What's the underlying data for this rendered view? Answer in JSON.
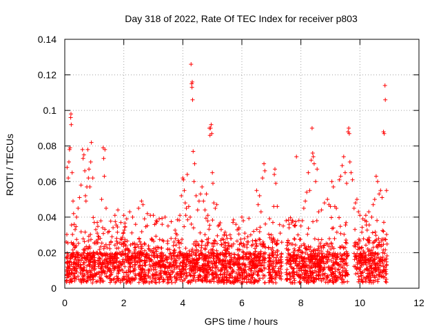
{
  "chart_data": {
    "type": "scatter",
    "title": "Day 318 of 2022, Rate Of TEC Index for receiver p803",
    "xlabel": "GPS time / hours",
    "ylabel": "ROTI / TECUs",
    "xlim": [
      0,
      12
    ],
    "ylim": [
      0,
      0.14
    ],
    "xticks": [
      0,
      2,
      4,
      6,
      8,
      10,
      12
    ],
    "xtick_labels": [
      "0",
      "2",
      "4",
      "6",
      "8",
      "10",
      "12"
    ],
    "yticks": [
      0,
      0.02,
      0.04,
      0.06,
      0.08,
      0.1,
      0.12,
      0.14
    ],
    "ytick_labels": [
      "0",
      "0.02",
      "0.04",
      "0.06",
      "0.08",
      "0.1",
      "0.12",
      "0.14"
    ],
    "grid": true,
    "marker": "plus",
    "color": "#ff0000",
    "series": [
      {
        "name": "ROTI",
        "points": [
          [
            0.05,
            0.026
          ],
          [
            0.08,
            0.068
          ],
          [
            0.1,
            0.014
          ],
          [
            0.12,
            0.062
          ],
          [
            0.14,
            0.071
          ],
          [
            0.16,
            0.078
          ],
          [
            0.18,
            0.079
          ],
          [
            0.2,
            0.096
          ],
          [
            0.21,
            0.098
          ],
          [
            0.22,
            0.092
          ],
          [
            0.25,
            0.065
          ],
          [
            0.28,
            0.049
          ],
          [
            0.3,
            0.042
          ],
          [
            0.32,
            0.036
          ],
          [
            0.35,
            0.033
          ],
          [
            0.4,
            0.04
          ],
          [
            0.45,
            0.045
          ],
          [
            0.5,
            0.051
          ],
          [
            0.55,
            0.058
          ],
          [
            0.6,
            0.078
          ],
          [
            0.62,
            0.073
          ],
          [
            0.65,
            0.075
          ],
          [
            0.68,
            0.066
          ],
          [
            0.7,
            0.052
          ],
          [
            0.72,
            0.049
          ],
          [
            0.75,
            0.057
          ],
          [
            0.78,
            0.078
          ],
          [
            0.8,
            0.062
          ],
          [
            0.82,
            0.067
          ],
          [
            0.85,
            0.057
          ],
          [
            0.88,
            0.071
          ],
          [
            0.9,
            0.082
          ],
          [
            0.95,
            0.062
          ],
          [
            1.0,
            0.037
          ],
          [
            1.05,
            0.033
          ],
          [
            1.1,
            0.031
          ],
          [
            1.15,
            0.029
          ],
          [
            1.2,
            0.028
          ],
          [
            1.25,
            0.05
          ],
          [
            1.3,
            0.079
          ],
          [
            1.32,
            0.073
          ],
          [
            1.34,
            0.063
          ],
          [
            1.36,
            0.078
          ],
          [
            1.4,
            0.045
          ],
          [
            1.5,
            0.032
          ],
          [
            1.6,
            0.029
          ],
          [
            1.7,
            0.041
          ],
          [
            1.8,
            0.044
          ],
          [
            1.9,
            0.037
          ],
          [
            2.0,
            0.041
          ],
          [
            2.1,
            0.039
          ],
          [
            2.2,
            0.043
          ],
          [
            2.3,
            0.04
          ],
          [
            2.4,
            0.036
          ],
          [
            2.5,
            0.045
          ],
          [
            2.6,
            0.049
          ],
          [
            2.65,
            0.047
          ],
          [
            2.7,
            0.039
          ],
          [
            2.8,
            0.042
          ],
          [
            2.9,
            0.041
          ],
          [
            3.0,
            0.041
          ],
          [
            3.1,
            0.038
          ],
          [
            3.2,
            0.039
          ],
          [
            3.3,
            0.036
          ],
          [
            3.4,
            0.04
          ],
          [
            3.5,
            0.035
          ],
          [
            3.6,
            0.028
          ],
          [
            3.7,
            0.026
          ],
          [
            3.8,
            0.03
          ],
          [
            3.9,
            0.041
          ],
          [
            3.95,
            0.052
          ],
          [
            4.0,
            0.062
          ],
          [
            4.02,
            0.061
          ],
          [
            4.05,
            0.055
          ],
          [
            4.08,
            0.048
          ],
          [
            4.1,
            0.041
          ],
          [
            4.12,
            0.045
          ],
          [
            4.15,
            0.064
          ],
          [
            4.2,
            0.046
          ],
          [
            4.25,
            0.04
          ],
          [
            4.28,
            0.126
          ],
          [
            4.3,
            0.115
          ],
          [
            4.31,
            0.113
          ],
          [
            4.32,
            0.116
          ],
          [
            4.33,
            0.106
          ],
          [
            4.35,
            0.077
          ],
          [
            4.38,
            0.06
          ],
          [
            4.4,
            0.07
          ],
          [
            4.45,
            0.052
          ],
          [
            4.5,
            0.044
          ],
          [
            4.55,
            0.049
          ],
          [
            4.6,
            0.053
          ],
          [
            4.65,
            0.057
          ],
          [
            4.7,
            0.049
          ],
          [
            4.75,
            0.044
          ],
          [
            4.8,
            0.053
          ],
          [
            4.85,
            0.041
          ],
          [
            4.9,
            0.09
          ],
          [
            4.92,
            0.086
          ],
          [
            4.94,
            0.09
          ],
          [
            4.96,
            0.092
          ],
          [
            4.98,
            0.087
          ],
          [
            5.0,
            0.065
          ],
          [
            5.02,
            0.059
          ],
          [
            5.05,
            0.048
          ],
          [
            5.1,
            0.045
          ],
          [
            5.15,
            0.047
          ],
          [
            5.2,
            0.035
          ],
          [
            5.3,
            0.033
          ],
          [
            5.4,
            0.03
          ],
          [
            5.5,
            0.028
          ],
          [
            5.6,
            0.03
          ],
          [
            5.7,
            0.037
          ],
          [
            5.8,
            0.036
          ],
          [
            5.9,
            0.034
          ],
          [
            6.0,
            0.04
          ],
          [
            6.05,
            0.038
          ],
          [
            6.1,
            0.031
          ],
          [
            6.2,
            0.029
          ],
          [
            6.3,
            0.03
          ],
          [
            6.4,
            0.032
          ],
          [
            6.5,
            0.055
          ],
          [
            6.55,
            0.047
          ],
          [
            6.6,
            0.052
          ],
          [
            6.65,
            0.043
          ],
          [
            6.7,
            0.062
          ],
          [
            6.75,
            0.07
          ],
          [
            6.78,
            0.066
          ],
          [
            6.8,
            0.023
          ],
          [
            6.9,
            0.023
          ],
          [
            7.0,
            0.03
          ],
          [
            7.05,
            0.037
          ],
          [
            7.08,
            0.046
          ],
          [
            7.1,
            0.064
          ],
          [
            7.12,
            0.067
          ],
          [
            7.15,
            0.059
          ],
          [
            7.2,
            0.046
          ],
          [
            7.3,
            0.031
          ],
          [
            7.4,
            0.035
          ],
          [
            7.5,
            0.038
          ],
          [
            7.6,
            0.036
          ],
          [
            7.7,
            0.038
          ],
          [
            7.8,
            0.035
          ],
          [
            7.85,
            0.074
          ],
          [
            7.9,
            0.03
          ],
          [
            8.0,
            0.035
          ],
          [
            8.05,
            0.038
          ],
          [
            8.1,
            0.045
          ],
          [
            8.15,
            0.049
          ],
          [
            8.2,
            0.054
          ],
          [
            8.25,
            0.065
          ],
          [
            8.3,
            0.055
          ],
          [
            8.35,
            0.072
          ],
          [
            8.38,
            0.09
          ],
          [
            8.4,
            0.076
          ],
          [
            8.42,
            0.074
          ],
          [
            8.45,
            0.07
          ],
          [
            8.5,
            0.06
          ],
          [
            8.55,
            0.067
          ],
          [
            8.6,
            0.043
          ],
          [
            8.7,
            0.044
          ],
          [
            8.8,
            0.048
          ],
          [
            8.9,
            0.05
          ],
          [
            8.95,
            0.047
          ],
          [
            9.0,
            0.046
          ],
          [
            9.05,
            0.06
          ],
          [
            9.1,
            0.057
          ],
          [
            9.15,
            0.046
          ],
          [
            9.2,
            0.045
          ],
          [
            9.3,
            0.061
          ],
          [
            9.35,
            0.063
          ],
          [
            9.4,
            0.069
          ],
          [
            9.45,
            0.074
          ],
          [
            9.5,
            0.065
          ],
          [
            9.55,
            0.059
          ],
          [
            9.6,
            0.088
          ],
          [
            9.62,
            0.09
          ],
          [
            9.64,
            0.087
          ],
          [
            9.66,
            0.071
          ],
          [
            9.7,
            0.065
          ],
          [
            9.75,
            0.061
          ],
          [
            9.8,
            0.045
          ],
          [
            9.85,
            0.048
          ],
          [
            9.9,
            0.05
          ],
          [
            9.95,
            0.043
          ],
          [
            10.0,
            0.041
          ],
          [
            10.1,
            0.039
          ],
          [
            10.2,
            0.041
          ],
          [
            10.3,
            0.043
          ],
          [
            10.4,
            0.04
          ],
          [
            10.45,
            0.047
          ],
          [
            10.5,
            0.05
          ],
          [
            10.55,
            0.063
          ],
          [
            10.6,
            0.06
          ],
          [
            10.65,
            0.053
          ],
          [
            10.7,
            0.055
          ],
          [
            10.75,
            0.051
          ],
          [
            10.8,
            0.088
          ],
          [
            10.82,
            0.087
          ],
          [
            10.85,
            0.114
          ],
          [
            10.86,
            0.106
          ],
          [
            10.9,
            0.055
          ]
        ]
      }
    ],
    "dense_band": {
      "description_note": "dense cluster of ROTI points",
      "x_segments": [
        [
          0.05,
          6.8
        ],
        [
          6.9,
          7.35
        ],
        [
          7.5,
          8.0
        ],
        [
          8.0,
          9.6
        ],
        [
          9.8,
          10.92
        ]
      ],
      "y_range": [
        0.003,
        0.03
      ]
    }
  }
}
